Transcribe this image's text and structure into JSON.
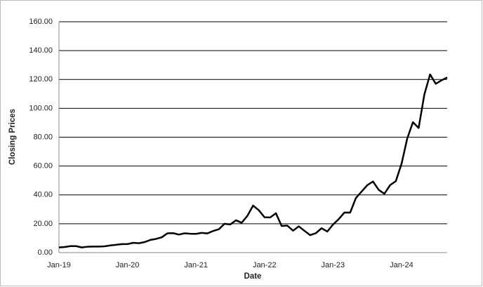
{
  "chart_data": {
    "type": "line",
    "x_label": "Date",
    "y_label": "Closing Prices",
    "categories": [
      "Jan-19",
      null,
      null,
      null,
      null,
      null,
      null,
      null,
      null,
      null,
      null,
      null,
      "Jan-20",
      null,
      null,
      null,
      null,
      null,
      null,
      null,
      null,
      null,
      null,
      null,
      "Jan-21",
      null,
      null,
      null,
      null,
      null,
      null,
      null,
      null,
      null,
      null,
      null,
      "Jan-22",
      null,
      null,
      null,
      null,
      null,
      null,
      null,
      null,
      null,
      null,
      null,
      "Jan-23",
      null,
      null,
      null,
      null,
      null,
      null,
      null,
      null,
      null,
      null,
      null,
      "Jan-24",
      null,
      null,
      null,
      null,
      null,
      null,
      null,
      null
    ],
    "series": [
      {
        "color": "#000000",
        "values": [
          3.6,
          3.9,
          4.5,
          4.5,
          3.6,
          4.1,
          4.2,
          4.2,
          4.4,
          5.0,
          5.4,
          5.9,
          5.9,
          6.8,
          6.5,
          7.3,
          8.8,
          9.5,
          10.6,
          13.4,
          13.5,
          12.5,
          13.4,
          13.1,
          13.0,
          13.7,
          13.3,
          15.0,
          16.2,
          20.0,
          19.5,
          22.4,
          20.7,
          25.5,
          32.6,
          29.4,
          24.5,
          24.4,
          27.3,
          18.5,
          18.7,
          15.2,
          18.2,
          15.1,
          12.1,
          13.5,
          16.9,
          14.6,
          19.5,
          23.2,
          27.8,
          27.7,
          37.8,
          42.3,
          46.7,
          49.3,
          43.5,
          40.8,
          46.8,
          49.5,
          61.5,
          79.1,
          90.4,
          86.4,
          109.6,
          123.5,
          117.0,
          119.4,
          121.4
        ]
      }
    ],
    "ylim": [
      0,
      160
    ],
    "yticks": [
      {
        "value": 0,
        "label": "0.00"
      },
      {
        "value": 20,
        "label": "20.00"
      },
      {
        "value": 40,
        "label": "40.00"
      },
      {
        "value": 60,
        "label": "60.00"
      },
      {
        "value": 80,
        "label": "80.00"
      },
      {
        "value": 100,
        "label": "100.00"
      },
      {
        "value": 120,
        "label": "120.00"
      },
      {
        "value": 140,
        "label": "140.00"
      },
      {
        "value": 160,
        "label": "160.00"
      }
    ],
    "grid": true
  }
}
